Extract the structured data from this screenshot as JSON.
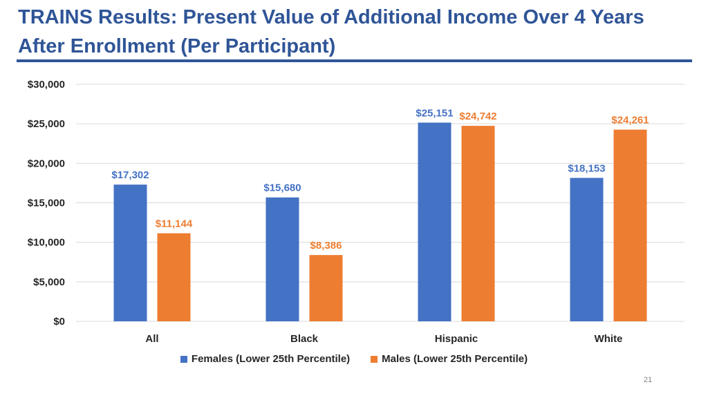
{
  "slide": {
    "title": "TRAINS Results: Present Value of Additional Income Over 4 Years After Enrollment (Per Participant)",
    "page_number": "21"
  },
  "colors": {
    "title": "#2f5597",
    "females": "#4472c4",
    "males": "#ed7d31",
    "grid": "#d9d9d9"
  },
  "chart_data": {
    "type": "bar",
    "title": "",
    "xlabel": "",
    "ylabel": "",
    "categories": [
      "All",
      "Black",
      "Hispanic",
      "White"
    ],
    "series": [
      {
        "name": "Females (Lower 25th Percentile)",
        "values": [
          17302,
          15680,
          25151,
          18153
        ],
        "labels": [
          "$17,302",
          "$15,680",
          "$25,151",
          "$18,153"
        ]
      },
      {
        "name": "Males (Lower 25th Percentile)",
        "values": [
          11144,
          8386,
          24742,
          24261
        ],
        "labels": [
          "$11,144",
          "$8,386",
          "$24,742",
          "$24,261"
        ]
      }
    ],
    "ylim": [
      0,
      30000
    ],
    "yticks": [
      0,
      5000,
      10000,
      15000,
      20000,
      25000,
      30000
    ],
    "ytick_labels": [
      "$0",
      "$5,000",
      "$10,000",
      "$15,000",
      "$20,000",
      "$25,000",
      "$30,000"
    ],
    "grid": true,
    "legend_position": "bottom"
  }
}
